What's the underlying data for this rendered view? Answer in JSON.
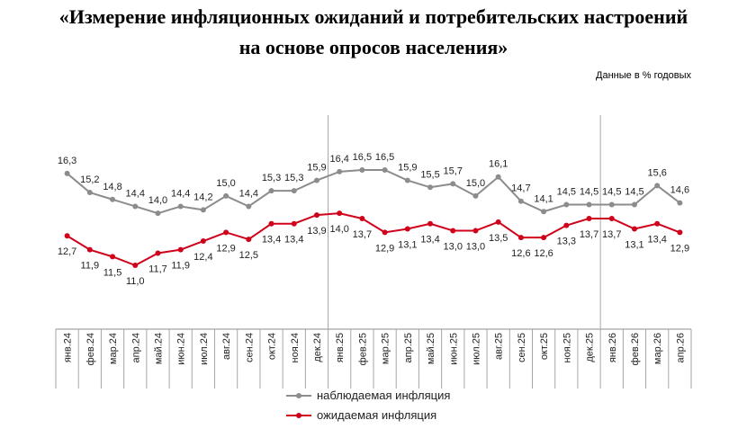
{
  "title_line1": "«Измерение инфляционных ожиданий и потребительских настроений",
  "title_line2": "на основе опросов населения»",
  "units_note": "Данные в % годовых",
  "chart_data": {
    "type": "line",
    "categories": [
      "янв.24",
      "фев.24",
      "мар.24",
      "апр.24",
      "май.24",
      "июн.24",
      "июл.24",
      "авг.24",
      "сен.24",
      "окт.24",
      "ноя.24",
      "дек.24",
      "янв.25",
      "фев.25",
      "мар.25",
      "апр.25",
      "май.25",
      "июн.25",
      "июл.25",
      "авг.25",
      "сен.25",
      "окт.25",
      "ноя.25",
      "дек.25",
      "янв.26",
      "фев.26",
      "мар.26",
      "апр.26"
    ],
    "series": [
      {
        "name": "наблюдаемая инфляция",
        "color": "#8c8c8c",
        "values": [
          16.3,
          15.2,
          14.8,
          14.4,
          14.0,
          14.4,
          14.2,
          15.0,
          14.4,
          15.3,
          15.3,
          15.9,
          16.4,
          16.5,
          16.5,
          15.9,
          15.5,
          15.7,
          15.0,
          16.1,
          14.7,
          14.1,
          14.5,
          14.5,
          14.5,
          14.5,
          15.6,
          14.6
        ],
        "labels": [
          "16,3",
          "15,2",
          "14,8",
          "14,4",
          "14,0",
          "14,4",
          "14,2",
          "15,0",
          "14,4",
          "15,3",
          "15,3",
          "15,9",
          "16,4",
          "16,5",
          "16,5",
          "15,9",
          "15,5",
          "15,7",
          "15,0",
          "16,1",
          "14,7",
          "14,1",
          "14,5",
          "14,5",
          "14,5",
          "14,5",
          "15,6",
          "14,6"
        ]
      },
      {
        "name": "ожидаемая инфляция",
        "color": "#d0021b",
        "values": [
          12.7,
          11.9,
          11.5,
          11.0,
          11.7,
          11.9,
          12.4,
          12.9,
          12.5,
          13.4,
          13.4,
          13.9,
          14.0,
          13.7,
          12.9,
          13.1,
          13.4,
          13.0,
          13.0,
          13.5,
          12.6,
          12.6,
          13.3,
          13.7,
          13.7,
          13.1,
          13.4,
          12.9
        ],
        "labels": [
          "12,7",
          "11,9",
          "11,5",
          "11,0",
          "11,7",
          "11,9",
          "12,4",
          "12,9",
          "12,5",
          "13,4",
          "13,4",
          "13,9",
          "14,0",
          "13,7",
          "12,9",
          "13,1",
          "13,4",
          "13,0",
          "13,0",
          "13,5",
          "12,6",
          "12,6",
          "13,3",
          "13,7",
          "13,7",
          "13,1",
          "13,4",
          "12,9"
        ]
      }
    ],
    "year_dividers_after": [
      "дек.24",
      "дек.25"
    ],
    "legend_position": "bottom"
  }
}
